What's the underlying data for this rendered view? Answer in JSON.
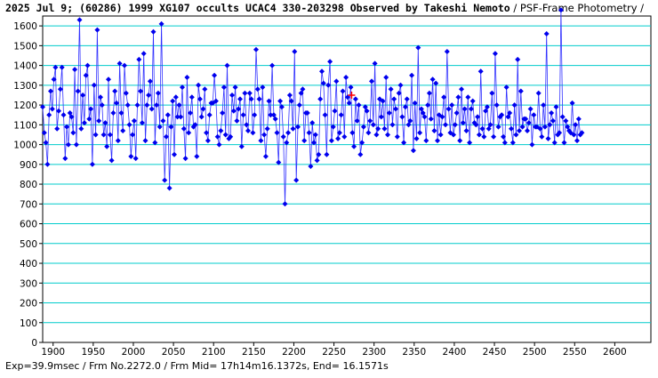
{
  "title": {
    "main": "2025 Jul 9; (60286) 1999 XG107 occults UCAC4 330-203298 Observed by Takeshi Nemoto",
    "method": " / PSF-Frame Photometry /"
  },
  "footer": {
    "text": "Exp=39.9msec / Frm No.2272.0 / Frm Mid= 17h14m16.1372s,  End= 16.1571s"
  },
  "colors": {
    "series": "#0000ee",
    "line": "#3333ff",
    "grid": "#00cccc",
    "marker": "#ff0000"
  },
  "chart_data": {
    "type": "line",
    "title": "2025 Jul 9; (60286) 1999 XG107 occults UCAC4 330-203298 Observed by Takeshi Nemoto / PSF-Frame Photometry /",
    "xlabel": "",
    "ylabel": "",
    "xlim": [
      1887,
      2645
    ],
    "ylim": [
      0,
      1650
    ],
    "grid": true,
    "x_ticks": [
      1900,
      1950,
      2000,
      2050,
      2100,
      2150,
      2200,
      2250,
      2300,
      2350,
      2400,
      2450,
      2500,
      2550,
      2600
    ],
    "y_ticks": [
      0,
      100,
      200,
      300,
      400,
      500,
      600,
      700,
      800,
      900,
      1000,
      1100,
      1200,
      1300,
      1400,
      1500,
      1600
    ],
    "series": [
      {
        "x_start": 1887,
        "x_step": 2,
        "values": [
          1190,
          1060,
          1010,
          900,
          1150,
          1270,
          1180,
          1330,
          1390,
          1080,
          1170,
          1280,
          1390,
          1150,
          930,
          1090,
          1000,
          1160,
          1140,
          1060,
          1380,
          1000,
          1270,
          1630,
          1080,
          1250,
          1110,
          1350,
          1400,
          1130,
          1180,
          900,
          1300,
          1050,
          1580,
          1120,
          1240,
          1200,
          1050,
          1110,
          990,
          1330,
          1050,
          920,
          1160,
          1270,
          1210,
          1020,
          1410,
          1160,
          1070,
          1400,
          1260,
          1200,
          1100,
          940,
          1050,
          1120,
          930,
          1200,
          1430,
          1270,
          1110,
          1460,
          1020,
          1200,
          1250,
          1320,
          1180,
          1570,
          1010,
          1200,
          1260,
          1090,
          1610,
          1120,
          820,
          1040,
          1150,
          780,
          1090,
          1220,
          950,
          1240,
          1140,
          1200,
          1140,
          1290,
          1080,
          930,
          1340,
          1060,
          1160,
          1240,
          1090,
          1100,
          940,
          1300,
          1230,
          1140,
          1180,
          1280,
          1060,
          1020,
          1150,
          1210,
          1210,
          1350,
          1220,
          1040,
          1000,
          1070,
          1160,
          1290,
          1050,
          1400,
          1030,
          1040,
          1250,
          1170,
          1290,
          1120,
          1180,
          1230,
          990,
          1150,
          1260,
          1100,
          1070,
          1260,
          1230,
          1060,
          1150,
          1480,
          1280,
          1230,
          1020,
          1290,
          1050,
          940,
          1080,
          1220,
          1150,
          1400,
          1150,
          1130,
          1060,
          910,
          1220,
          1190,
          1040,
          700,
          1010,
          1060,
          1250,
          1220,
          1080,
          1470,
          820,
          1090,
          1200,
          1260,
          1280,
          1020,
          1160,
          1160,
          1060,
          890,
          1110,
          1010,
          1050,
          920,
          950,
          1230,
          1370,
          1310,
          1150,
          950,
          1300,
          1420,
          1020,
          1090,
          1170,
          1320,
          1030,
          1060,
          1150,
          1270,
          1040,
          1340,
          1240,
          1210,
          1290,
          1060,
          990,
          1230,
          1120,
          1200,
          950,
          1010,
          1090,
          1190,
          1170,
          1060,
          1120,
          1320,
          1100,
          1410,
          1050,
          1080,
          1230,
          1140,
          1220,
          1080,
          1340,
          1050,
          1160,
          1280,
          1100,
          1230,
          1180,
          1040,
          1260,
          1300,
          1140,
          1010,
          1190,
          1230,
          1100,
          1120,
          1350,
          970,
          1210,
          1030,
          1490,
          1060,
          1180,
          1160,
          1140,
          1020,
          1200,
          1260,
          1130,
          1330,
          1070,
          1310,
          1020,
          1150,
          1050,
          1140,
          1240,
          1100,
          1470,
          1180,
          1060,
          1200,
          1050,
          1100,
          1160,
          1240,
          1020,
          1280,
          1110,
          1180,
          1070,
          1240,
          1010,
          1180,
          1220,
          1110,
          1100,
          1140,
          1050,
          1370,
          1080,
          1040,
          1170,
          1190,
          1080,
          1100,
          1260,
          1040,
          1460,
          1200,
          1090,
          1140,
          1150,
          1040,
          1010,
          1290,
          1140,
          1160,
          1080,
          1010,
          1200,
          1050,
          1430,
          1070,
          1270,
          1090,
          1130,
          1130,
          1070,
          1110,
          1180,
          1000,
          1150,
          1090,
          1090,
          1260,
          1080,
          1040,
          1200,
          1090,
          1560,
          1030,
          1100,
          1160,
          1120,
          1010,
          1190,
          1050,
          1060,
          1680,
          1140,
          1010,
          1120,
          1090,
          1070,
          1060,
          1210,
          1050,
          1100,
          1020,
          1130,
          1050,
          1060
        ]
      }
    ],
    "highlight": {
      "x": 2272,
      "value": 1250
    }
  }
}
